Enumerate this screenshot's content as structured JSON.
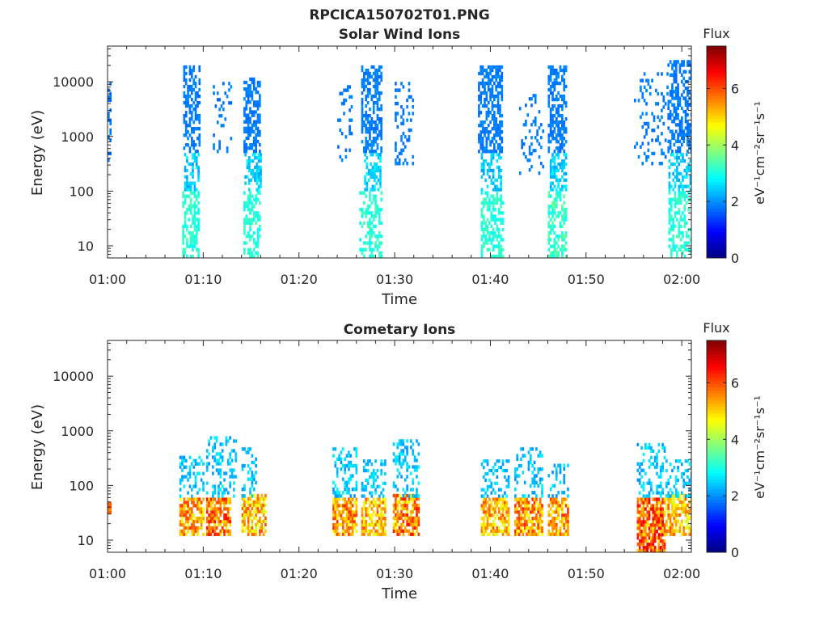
{
  "figure": {
    "title_line1": "RPCICA150702T01.PNG",
    "title_line2": "Solar Wind Ions"
  },
  "chart_data": [
    {
      "type": "heatmap",
      "title": "Solar Wind Ions",
      "xlabel": "Time",
      "ylabel": "Energy (eV)",
      "x_ticks": [
        "01:00",
        "01:10",
        "01:20",
        "01:30",
        "01:40",
        "01:50",
        "02:00"
      ],
      "x_tick_minutes": [
        0,
        10,
        20,
        30,
        40,
        50,
        60
      ],
      "xlim_minutes": [
        0,
        61
      ],
      "y_scale": "log",
      "y_ticks": [
        "10",
        "100",
        "1000",
        "10000"
      ],
      "y_tick_values": [
        10,
        100,
        1000,
        10000
      ],
      "ylim": [
        6,
        45000
      ],
      "colorbar": {
        "label": "Flux",
        "units": "eV⁻¹cm⁻²sr⁻¹s⁻¹",
        "ticks": [
          "0",
          "2",
          "4",
          "6"
        ],
        "tick_values": [
          0,
          2,
          4,
          6
        ],
        "range": [
          0,
          7.5
        ],
        "colormap": "jet"
      },
      "blobs": [
        {
          "t0": 7.9,
          "t1": 9.6,
          "emin": 500,
          "emax": 20000,
          "density": 0.55,
          "fmin": 1.7,
          "fmax": 2.0
        },
        {
          "t0": 8.0,
          "t1": 9.5,
          "emin": 100,
          "emax": 500,
          "density": 0.45,
          "fmin": 2.1,
          "fmax": 2.8
        },
        {
          "t0": 7.8,
          "t1": 9.6,
          "emin": 6,
          "emax": 100,
          "density": 0.55,
          "fmin": 2.8,
          "fmax": 3.4
        },
        {
          "t0": 11.0,
          "t1": 13.0,
          "emin": 500,
          "emax": 10000,
          "density": 0.18,
          "fmin": 1.7,
          "fmax": 2.0
        },
        {
          "t0": 14.2,
          "t1": 16.0,
          "emin": 500,
          "emax": 12000,
          "density": 0.6,
          "fmin": 1.7,
          "fmax": 2.0
        },
        {
          "t0": 14.3,
          "t1": 16.0,
          "emin": 100,
          "emax": 500,
          "density": 0.5,
          "fmin": 2.1,
          "fmax": 2.8
        },
        {
          "t0": 14.2,
          "t1": 16.0,
          "emin": 6,
          "emax": 100,
          "density": 0.55,
          "fmin": 2.8,
          "fmax": 3.4
        },
        {
          "t0": 24.0,
          "t1": 25.5,
          "emin": 300,
          "emax": 10000,
          "density": 0.15,
          "fmin": 1.7,
          "fmax": 2.0
        },
        {
          "t0": 26.5,
          "t1": 28.7,
          "emin": 500,
          "emax": 20000,
          "density": 0.6,
          "fmin": 1.7,
          "fmax": 2.0
        },
        {
          "t0": 26.8,
          "t1": 28.6,
          "emin": 100,
          "emax": 500,
          "density": 0.5,
          "fmin": 2.1,
          "fmax": 2.8
        },
        {
          "t0": 26.3,
          "t1": 28.6,
          "emin": 6,
          "emax": 100,
          "density": 0.5,
          "fmin": 2.8,
          "fmax": 3.4
        },
        {
          "t0": 30.0,
          "t1": 32.0,
          "emin": 300,
          "emax": 10000,
          "density": 0.2,
          "fmin": 1.7,
          "fmax": 2.0
        },
        {
          "t0": 38.7,
          "t1": 41.3,
          "emin": 500,
          "emax": 20000,
          "density": 0.6,
          "fmin": 1.7,
          "fmax": 2.0
        },
        {
          "t0": 39.0,
          "t1": 41.2,
          "emin": 100,
          "emax": 500,
          "density": 0.5,
          "fmin": 2.1,
          "fmax": 2.8
        },
        {
          "t0": 39.0,
          "t1": 41.3,
          "emin": 6,
          "emax": 100,
          "density": 0.5,
          "fmin": 2.8,
          "fmax": 3.4
        },
        {
          "t0": 43.0,
          "t1": 45.5,
          "emin": 200,
          "emax": 6000,
          "density": 0.15,
          "fmin": 1.7,
          "fmax": 2.0
        },
        {
          "t0": 46.0,
          "t1": 48.0,
          "emin": 500,
          "emax": 20000,
          "density": 0.6,
          "fmin": 1.7,
          "fmax": 2.0
        },
        {
          "t0": 46.2,
          "t1": 47.9,
          "emin": 100,
          "emax": 500,
          "density": 0.5,
          "fmin": 2.1,
          "fmax": 2.8
        },
        {
          "t0": 46.0,
          "t1": 47.9,
          "emin": 6,
          "emax": 100,
          "density": 0.5,
          "fmin": 2.8,
          "fmax": 3.6
        },
        {
          "t0": 55.0,
          "t1": 58.5,
          "emin": 300,
          "emax": 15000,
          "density": 0.15,
          "fmin": 1.7,
          "fmax": 2.0
        },
        {
          "t0": 58.5,
          "t1": 61.0,
          "emin": 500,
          "emax": 25000,
          "density": 0.5,
          "fmin": 1.7,
          "fmax": 2.0
        },
        {
          "t0": 58.6,
          "t1": 61.0,
          "emin": 100,
          "emax": 500,
          "density": 0.45,
          "fmin": 2.1,
          "fmax": 2.8
        },
        {
          "t0": 58.6,
          "t1": 61.0,
          "emin": 6,
          "emax": 100,
          "density": 0.5,
          "fmin": 2.8,
          "fmax": 3.4
        },
        {
          "t0": 0.0,
          "t1": 0.3,
          "emin": 300,
          "emax": 10000,
          "density": 0.35,
          "fmin": 1.7,
          "fmax": 1.9
        }
      ]
    },
    {
      "type": "heatmap",
      "title": "Cometary Ions",
      "xlabel": "Time",
      "ylabel": "Energy (eV)",
      "x_ticks": [
        "01:00",
        "01:10",
        "01:20",
        "01:30",
        "01:40",
        "01:50",
        "02:00"
      ],
      "x_tick_minutes": [
        0,
        10,
        20,
        30,
        40,
        50,
        60
      ],
      "xlim_minutes": [
        0,
        61
      ],
      "y_scale": "log",
      "y_ticks": [
        "10",
        "100",
        "1000",
        "10000"
      ],
      "y_tick_values": [
        10,
        100,
        1000,
        10000
      ],
      "ylim": [
        6,
        45000
      ],
      "colorbar": {
        "label": "Flux",
        "units": "eV⁻¹cm⁻²sr⁻¹s⁻¹",
        "ticks": [
          "0",
          "2",
          "4",
          "6"
        ],
        "tick_values": [
          0,
          2,
          4,
          6
        ],
        "range": [
          0,
          7.5
        ],
        "colormap": "jet"
      },
      "blobs": [
        {
          "t0": 7.5,
          "t1": 10.0,
          "emin": 12,
          "emax": 60,
          "density": 0.75,
          "fmin": 4.5,
          "fmax": 6.2
        },
        {
          "t0": 7.5,
          "t1": 10.0,
          "emin": 60,
          "emax": 350,
          "density": 0.35,
          "fmin": 2.0,
          "fmax": 2.8
        },
        {
          "t0": 10.3,
          "t1": 12.8,
          "emin": 12,
          "emax": 60,
          "density": 0.75,
          "fmin": 4.8,
          "fmax": 6.5
        },
        {
          "t0": 10.3,
          "t1": 13.5,
          "emin": 60,
          "emax": 800,
          "density": 0.3,
          "fmin": 2.0,
          "fmax": 2.8
        },
        {
          "t0": 14.0,
          "t1": 16.5,
          "emin": 12,
          "emax": 70,
          "density": 0.7,
          "fmin": 4.2,
          "fmax": 6.0
        },
        {
          "t0": 14.0,
          "t1": 15.5,
          "emin": 60,
          "emax": 500,
          "density": 0.3,
          "fmin": 2.0,
          "fmax": 2.8
        },
        {
          "t0": 23.5,
          "t1": 26.0,
          "emin": 12,
          "emax": 60,
          "density": 0.75,
          "fmin": 4.5,
          "fmax": 6.3
        },
        {
          "t0": 23.5,
          "t1": 26.0,
          "emin": 60,
          "emax": 500,
          "density": 0.35,
          "fmin": 2.0,
          "fmax": 2.8
        },
        {
          "t0": 26.5,
          "t1": 29.0,
          "emin": 12,
          "emax": 60,
          "density": 0.7,
          "fmin": 4.3,
          "fmax": 6.0
        },
        {
          "t0": 26.5,
          "t1": 29.0,
          "emin": 60,
          "emax": 300,
          "density": 0.3,
          "fmin": 2.0,
          "fmax": 2.8
        },
        {
          "t0": 29.8,
          "t1": 32.5,
          "emin": 12,
          "emax": 70,
          "density": 0.75,
          "fmin": 4.6,
          "fmax": 6.5
        },
        {
          "t0": 29.8,
          "t1": 32.5,
          "emin": 60,
          "emax": 700,
          "density": 0.3,
          "fmin": 2.0,
          "fmax": 2.8
        },
        {
          "t0": 39.0,
          "t1": 42.0,
          "emin": 12,
          "emax": 60,
          "density": 0.7,
          "fmin": 4.3,
          "fmax": 6.0
        },
        {
          "t0": 39.0,
          "t1": 42.0,
          "emin": 60,
          "emax": 300,
          "density": 0.3,
          "fmin": 2.0,
          "fmax": 2.8
        },
        {
          "t0": 42.5,
          "t1": 45.5,
          "emin": 12,
          "emax": 60,
          "density": 0.75,
          "fmin": 4.6,
          "fmax": 6.4
        },
        {
          "t0": 42.5,
          "t1": 45.5,
          "emin": 60,
          "emax": 500,
          "density": 0.3,
          "fmin": 2.0,
          "fmax": 2.8
        },
        {
          "t0": 46.0,
          "t1": 48.2,
          "emin": 12,
          "emax": 60,
          "density": 0.7,
          "fmin": 4.5,
          "fmax": 6.2
        },
        {
          "t0": 46.0,
          "t1": 48.2,
          "emin": 60,
          "emax": 250,
          "density": 0.3,
          "fmin": 2.0,
          "fmax": 2.8
        },
        {
          "t0": 55.3,
          "t1": 58.2,
          "emin": 6,
          "emax": 60,
          "density": 0.8,
          "fmin": 4.8,
          "fmax": 6.8
        },
        {
          "t0": 55.3,
          "t1": 58.2,
          "emin": 60,
          "emax": 600,
          "density": 0.3,
          "fmin": 2.0,
          "fmax": 2.8
        },
        {
          "t0": 58.3,
          "t1": 61.0,
          "emin": 12,
          "emax": 70,
          "density": 0.7,
          "fmin": 4.3,
          "fmax": 6.0
        },
        {
          "t0": 58.3,
          "t1": 61.0,
          "emin": 60,
          "emax": 300,
          "density": 0.3,
          "fmin": 2.0,
          "fmax": 2.8
        },
        {
          "t0": 0.0,
          "t1": 0.3,
          "emin": 30,
          "emax": 50,
          "density": 0.9,
          "fmin": 5.5,
          "fmax": 6.0
        }
      ]
    }
  ]
}
